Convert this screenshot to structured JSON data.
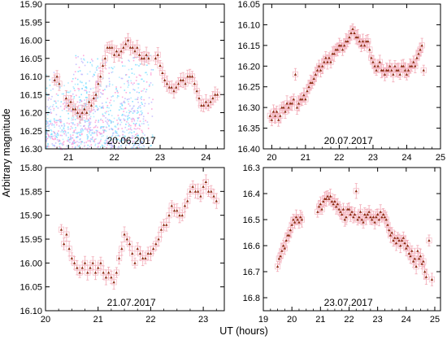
{
  "figure": {
    "ylabel": "Arbitrary magnitude",
    "xlabel": "UT (hours)"
  },
  "chart_data": [
    {
      "type": "scatter",
      "title": "20.06.2017",
      "xlim": [
        20.5,
        24.4
      ],
      "ylim": [
        16.3,
        15.9
      ],
      "y_inverted": true,
      "xticks": [
        21,
        22,
        23,
        24
      ],
      "yticks": [
        15.9,
        15.95,
        16.0,
        16.05,
        16.1,
        16.15,
        16.2,
        16.25,
        16.3
      ],
      "ytick_labels": [
        "15.90",
        "15.95",
        "16.00",
        "16.05",
        "16.10",
        "16.15",
        "16.20",
        "16.25",
        "16.30"
      ],
      "marker_color": "#8b2a10",
      "errorbar_color": "#f2a9b5",
      "background_noise": true,
      "x": [
        20.7,
        20.75,
        20.8,
        20.95,
        21.0,
        21.05,
        21.1,
        21.15,
        21.2,
        21.25,
        21.3,
        21.35,
        21.4,
        21.45,
        21.5,
        21.55,
        21.6,
        21.65,
        21.7,
        21.75,
        21.8,
        21.85,
        21.9,
        21.95,
        22.0,
        22.05,
        22.1,
        22.15,
        22.2,
        22.25,
        22.3,
        22.35,
        22.4,
        22.45,
        22.5,
        22.55,
        22.6,
        22.65,
        22.7,
        22.75,
        22.9,
        22.95,
        23.0,
        23.05,
        23.1,
        23.15,
        23.2,
        23.25,
        23.3,
        23.35,
        23.4,
        23.45,
        23.5,
        23.55,
        23.6,
        23.65,
        23.7,
        23.75,
        23.8,
        23.85,
        23.9,
        23.95,
        24.0,
        24.05,
        24.1,
        24.15,
        24.2,
        24.25
      ],
      "y": [
        16.11,
        16.1,
        16.12,
        16.16,
        16.18,
        16.17,
        16.19,
        16.19,
        16.2,
        16.21,
        16.2,
        16.19,
        16.2,
        16.17,
        16.18,
        16.16,
        16.15,
        16.12,
        16.1,
        16.07,
        16.05,
        16.02,
        16.02,
        16.02,
        16.04,
        16.03,
        16.04,
        16.03,
        16.02,
        16.01,
        16.0,
        16.02,
        16.02,
        16.03,
        16.02,
        16.04,
        16.05,
        16.05,
        16.04,
        16.05,
        16.05,
        16.04,
        16.07,
        16.09,
        16.11,
        16.12,
        16.13,
        16.13,
        16.14,
        16.13,
        16.12,
        16.11,
        16.11,
        16.12,
        16.1,
        16.1,
        16.1,
        16.12,
        16.14,
        16.16,
        16.18,
        16.18,
        16.17,
        16.18,
        16.17,
        16.16,
        16.15,
        16.15
      ]
    },
    {
      "type": "scatter",
      "title": "20.07.2017",
      "xlim": [
        19.75,
        25.0
      ],
      "ylim": [
        16.4,
        16.05
      ],
      "y_inverted": true,
      "xticks": [
        20,
        21,
        22,
        23,
        24,
        25
      ],
      "yticks": [
        16.05,
        16.1,
        16.15,
        16.2,
        16.25,
        16.3,
        16.35,
        16.4
      ],
      "ytick_labels": [
        "16.05",
        "16.10",
        "16.15",
        "16.20",
        "16.25",
        "16.30",
        "16.35",
        "16.40"
      ],
      "marker_color": "#8b2a10",
      "errorbar_color": "#f2a9b5",
      "x": [
        19.95,
        20.0,
        20.05,
        20.1,
        20.15,
        20.2,
        20.25,
        20.3,
        20.35,
        20.4,
        20.45,
        20.5,
        20.55,
        20.6,
        20.65,
        20.7,
        20.75,
        20.8,
        20.85,
        20.9,
        20.95,
        21.0,
        21.05,
        21.1,
        21.15,
        21.2,
        21.25,
        21.3,
        21.35,
        21.4,
        21.45,
        21.5,
        21.55,
        21.6,
        21.65,
        21.7,
        21.75,
        21.8,
        21.85,
        21.9,
        21.95,
        22.0,
        22.05,
        22.1,
        22.15,
        22.2,
        22.25,
        22.3,
        22.35,
        22.4,
        22.45,
        22.5,
        22.55,
        22.6,
        22.65,
        22.7,
        22.75,
        22.8,
        22.85,
        22.9,
        22.95,
        23.0,
        23.05,
        23.1,
        23.15,
        23.2,
        23.25,
        23.3,
        23.35,
        23.4,
        23.45,
        23.5,
        23.55,
        23.6,
        23.65,
        23.7,
        23.75,
        23.8,
        23.85,
        23.9,
        23.95,
        24.0,
        24.05,
        24.1,
        24.15,
        24.2,
        24.25,
        24.3,
        24.35,
        24.4,
        24.45,
        24.5
      ],
      "y": [
        16.32,
        16.33,
        16.31,
        16.32,
        16.31,
        16.33,
        16.32,
        16.3,
        16.3,
        16.31,
        16.29,
        16.3,
        16.29,
        16.29,
        16.28,
        16.22,
        16.3,
        16.29,
        16.28,
        16.28,
        16.27,
        16.28,
        16.26,
        16.25,
        16.24,
        16.24,
        16.23,
        16.22,
        16.21,
        16.2,
        16.21,
        16.2,
        16.19,
        16.18,
        16.19,
        16.18,
        16.19,
        16.17,
        16.17,
        16.16,
        16.16,
        16.15,
        16.15,
        16.16,
        16.15,
        16.14,
        16.14,
        16.13,
        16.12,
        16.11,
        16.12,
        16.13,
        16.13,
        16.14,
        16.15,
        16.14,
        16.15,
        16.14,
        16.14,
        16.16,
        16.18,
        16.19,
        16.2,
        16.21,
        16.2,
        16.19,
        16.21,
        16.21,
        16.22,
        16.21,
        16.21,
        16.2,
        16.21,
        16.22,
        16.2,
        16.21,
        16.21,
        16.22,
        16.2,
        16.2,
        16.21,
        16.22,
        16.21,
        16.2,
        16.2,
        16.19,
        16.2,
        16.18,
        16.17,
        16.16,
        16.15,
        16.21
      ]
    },
    {
      "type": "scatter",
      "title": "21.07.2017",
      "xlim": [
        20.0,
        23.4
      ],
      "ylim": [
        16.1,
        15.8
      ],
      "y_inverted": true,
      "xticks": [
        20,
        21,
        22,
        23
      ],
      "yticks": [
        15.8,
        15.85,
        15.9,
        15.95,
        16.0,
        16.05,
        16.1
      ],
      "ytick_labels": [
        "15.80",
        "15.85",
        "15.90",
        "15.95",
        "16.00",
        "16.05",
        "16.10"
      ],
      "marker_color": "#8b2a10",
      "errorbar_color": "#f2a9b5",
      "x": [
        20.3,
        20.35,
        20.4,
        20.45,
        20.5,
        20.55,
        20.6,
        20.65,
        20.7,
        20.75,
        20.8,
        20.85,
        20.9,
        20.95,
        21.0,
        21.05,
        21.1,
        21.15,
        21.2,
        21.25,
        21.3,
        21.35,
        21.4,
        21.45,
        21.5,
        21.55,
        21.6,
        21.65,
        21.7,
        21.75,
        21.8,
        21.85,
        21.9,
        21.95,
        22.0,
        22.05,
        22.1,
        22.15,
        22.2,
        22.25,
        22.3,
        22.35,
        22.4,
        22.45,
        22.5,
        22.55,
        22.6,
        22.65,
        22.7,
        22.75,
        22.8,
        22.85,
        22.9,
        22.95,
        23.0,
        23.05,
        23.1,
        23.15,
        23.2,
        23.25
      ],
      "y": [
        15.93,
        15.96,
        15.94,
        15.97,
        15.99,
        16.0,
        16.01,
        16.02,
        16.01,
        16.0,
        16.02,
        16.01,
        16.0,
        16.02,
        16.01,
        16.0,
        16.02,
        16.03,
        16.02,
        16.03,
        16.04,
        16.02,
        15.99,
        15.97,
        15.94,
        15.95,
        15.96,
        15.98,
        16.0,
        15.97,
        15.98,
        15.99,
        15.99,
        15.98,
        15.98,
        15.97,
        15.96,
        15.95,
        15.93,
        15.92,
        15.92,
        15.9,
        15.88,
        15.89,
        15.89,
        15.9,
        15.9,
        15.88,
        15.87,
        15.85,
        15.84,
        15.85,
        15.85,
        15.86,
        15.84,
        15.83,
        15.85,
        15.85,
        15.86,
        15.87
      ]
    },
    {
      "type": "scatter",
      "title": "23.07.2017",
      "xlim": [
        19.0,
        25.2
      ],
      "ylim": [
        16.85,
        16.3
      ],
      "y_inverted": true,
      "xticks": [
        19,
        20,
        21,
        22,
        23,
        24,
        25
      ],
      "yticks": [
        16.3,
        16.4,
        16.5,
        16.6,
        16.7,
        16.8
      ],
      "ytick_labels": [
        "16.3",
        "16.4",
        "16.5",
        "16.6",
        "16.7",
        "16.8"
      ],
      "marker_color": "#8b2a10",
      "errorbar_color": "#f2a9b5",
      "x": [
        19.5,
        19.55,
        19.6,
        19.65,
        19.7,
        19.75,
        19.8,
        19.85,
        19.9,
        19.95,
        20.0,
        20.05,
        20.1,
        20.15,
        20.2,
        20.25,
        20.3,
        20.35,
        20.9,
        20.95,
        21.0,
        21.05,
        21.1,
        21.15,
        21.2,
        21.25,
        21.3,
        21.35,
        21.4,
        21.45,
        21.5,
        21.55,
        21.6,
        21.65,
        21.7,
        21.75,
        21.8,
        21.85,
        21.9,
        21.95,
        22.0,
        22.05,
        22.1,
        22.15,
        22.2,
        22.25,
        22.3,
        22.35,
        22.4,
        22.45,
        22.5,
        22.55,
        22.6,
        22.65,
        22.7,
        22.75,
        22.8,
        22.85,
        22.9,
        22.95,
        23.0,
        23.05,
        23.1,
        23.15,
        23.2,
        23.25,
        23.3,
        23.35,
        23.4,
        23.45,
        23.5,
        23.55,
        23.6,
        23.65,
        23.7,
        23.75,
        23.8,
        23.85,
        23.9,
        23.95,
        24.0,
        24.05,
        24.1,
        24.15,
        24.2,
        24.25,
        24.3,
        24.35,
        24.4,
        24.45,
        24.5,
        24.55,
        24.6,
        24.65,
        24.7,
        24.8,
        24.9
      ],
      "y": [
        16.68,
        16.65,
        16.64,
        16.62,
        16.6,
        16.61,
        16.58,
        16.56,
        16.56,
        16.54,
        16.52,
        16.5,
        16.51,
        16.49,
        16.5,
        16.51,
        16.49,
        16.5,
        16.47,
        16.45,
        16.44,
        16.46,
        16.43,
        16.42,
        16.42,
        16.41,
        16.42,
        16.41,
        16.43,
        16.44,
        16.43,
        16.45,
        16.44,
        16.46,
        16.47,
        16.48,
        16.46,
        16.5,
        16.49,
        16.46,
        16.46,
        16.48,
        16.47,
        16.49,
        16.48,
        16.39,
        16.5,
        16.49,
        16.47,
        16.5,
        16.51,
        16.48,
        16.49,
        16.48,
        16.47,
        16.49,
        16.5,
        16.49,
        16.51,
        16.49,
        16.48,
        16.5,
        16.47,
        16.49,
        16.48,
        16.49,
        16.5,
        16.52,
        16.54,
        16.56,
        16.55,
        16.58,
        16.57,
        16.59,
        16.57,
        16.58,
        16.6,
        16.58,
        16.57,
        16.59,
        16.61,
        16.6,
        16.63,
        16.64,
        16.62,
        16.66,
        16.65,
        16.68,
        16.62,
        16.65,
        16.64,
        16.67,
        16.66,
        16.7,
        16.72,
        16.58,
        16.73
      ]
    }
  ]
}
